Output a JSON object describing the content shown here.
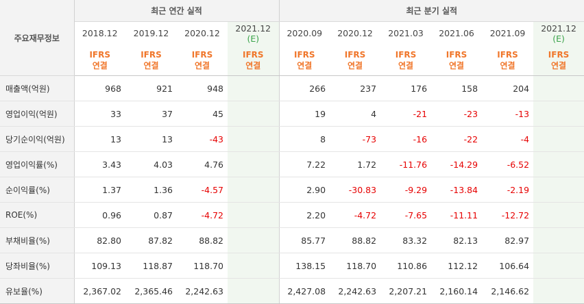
{
  "table": {
    "corner_label": "주요재무정보",
    "group_annual": "최근 연간 실적",
    "group_quarter": "최근 분기 실적",
    "periods": [
      {
        "label": "2018.12",
        "estimate": false
      },
      {
        "label": "2019.12",
        "estimate": false
      },
      {
        "label": "2020.12",
        "estimate": false
      },
      {
        "label": "2021.12",
        "estimate": true
      },
      {
        "label": "2020.09",
        "estimate": false
      },
      {
        "label": "2020.12",
        "estimate": false
      },
      {
        "label": "2021.03",
        "estimate": false
      },
      {
        "label": "2021.06",
        "estimate": false
      },
      {
        "label": "2021.09",
        "estimate": false
      },
      {
        "label": "2021.12",
        "estimate": true
      }
    ],
    "estimate_mark": "(E)",
    "accounting_line1": "IFRS",
    "accounting_line2": "연결",
    "rows": [
      {
        "label": "매출액(억원)",
        "values": [
          "968",
          "921",
          "948",
          "",
          "266",
          "237",
          "176",
          "158",
          "204",
          ""
        ]
      },
      {
        "label": "영업이익(억원)",
        "values": [
          "33",
          "37",
          "45",
          "",
          "19",
          "4",
          "-21",
          "-23",
          "-13",
          ""
        ]
      },
      {
        "label": "당기순이익(억원)",
        "values": [
          "13",
          "13",
          "-43",
          "",
          "8",
          "-73",
          "-16",
          "-22",
          "-4",
          ""
        ]
      },
      {
        "label": "영업이익률(%)",
        "values": [
          "3.43",
          "4.03",
          "4.76",
          "",
          "7.22",
          "1.72",
          "-11.76",
          "-14.29",
          "-6.52",
          ""
        ]
      },
      {
        "label": "순이익률(%)",
        "values": [
          "1.37",
          "1.36",
          "-4.57",
          "",
          "2.90",
          "-30.83",
          "-9.29",
          "-13.84",
          "-2.19",
          ""
        ]
      },
      {
        "label": "ROE(%)",
        "values": [
          "0.96",
          "0.87",
          "-4.72",
          "",
          "2.20",
          "-4.72",
          "-7.65",
          "-11.11",
          "-12.72",
          ""
        ]
      },
      {
        "label": "부채비율(%)",
        "values": [
          "82.80",
          "87.82",
          "88.82",
          "",
          "85.77",
          "88.82",
          "83.32",
          "82.13",
          "82.97",
          ""
        ]
      },
      {
        "label": "당좌비율(%)",
        "values": [
          "109.13",
          "118.87",
          "118.70",
          "",
          "138.15",
          "118.70",
          "110.86",
          "112.12",
          "106.64",
          ""
        ]
      },
      {
        "label": "유보율(%)",
        "values": [
          "2,367.02",
          "2,365.46",
          "2,242.63",
          "",
          "2,427.08",
          "2,242.63",
          "2,207.21",
          "2,160.14",
          "2,146.62",
          ""
        ]
      }
    ],
    "colors": {
      "negative": "#e60000",
      "accounting": "#f0762a",
      "estimate_mark": "#3aa34a",
      "estimate_bg": "#f1f7f0",
      "header_bg": "#f3f3f3"
    }
  }
}
